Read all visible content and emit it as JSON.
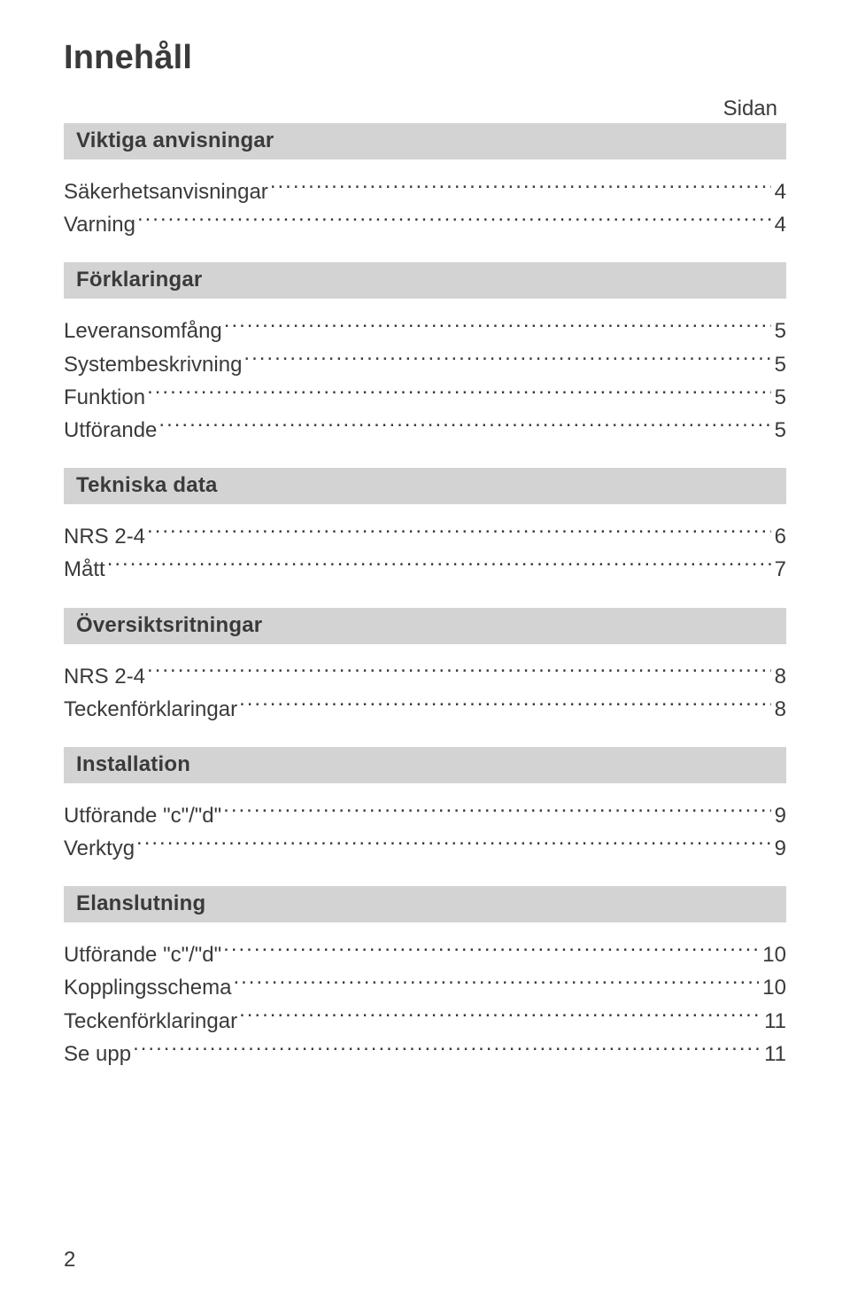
{
  "title": "Innehåll",
  "sidan_label": "Sidan",
  "page_number": "2",
  "colors": {
    "text": "#3a3a3a",
    "section_bg": "#d3d3d3",
    "page_bg": "#ffffff"
  },
  "sections": [
    {
      "heading": "Viktiga anvisningar",
      "entries": [
        {
          "label": "Säkerhetsanvisningar",
          "page": "4"
        },
        {
          "label": "Varning",
          "page": "4"
        }
      ]
    },
    {
      "heading": "Förklaringar",
      "entries": [
        {
          "label": "Leveransomfång",
          "page": "5"
        },
        {
          "label": "Systembeskrivning",
          "page": "5"
        },
        {
          "label": "Funktion",
          "page": "5"
        },
        {
          "label": "Utförande",
          "page": "5"
        }
      ]
    },
    {
      "heading": "Tekniska data",
      "entries": [
        {
          "label": "NRS 2-4",
          "page": "6"
        },
        {
          "label": "Mått",
          "page": "7"
        }
      ]
    },
    {
      "heading": "Översiktsritningar",
      "entries": [
        {
          "label": "NRS 2-4",
          "page": "8"
        },
        {
          "label": "Teckenförklaringar",
          "page": "8"
        }
      ]
    },
    {
      "heading": "Installation",
      "entries": [
        {
          "label": "Utförande \"c\"/\"d\"",
          "page": "9"
        },
        {
          "label": "Verktyg",
          "page": "9"
        }
      ]
    },
    {
      "heading": "Elanslutning",
      "entries": [
        {
          "label": "Utförande \"c\"/\"d\"",
          "page": "10"
        },
        {
          "label": "Kopplingsschema",
          "page": "10"
        },
        {
          "label": "Teckenförklaringar",
          "page": "11"
        },
        {
          "label": "Se upp",
          "page": "11"
        }
      ]
    }
  ]
}
